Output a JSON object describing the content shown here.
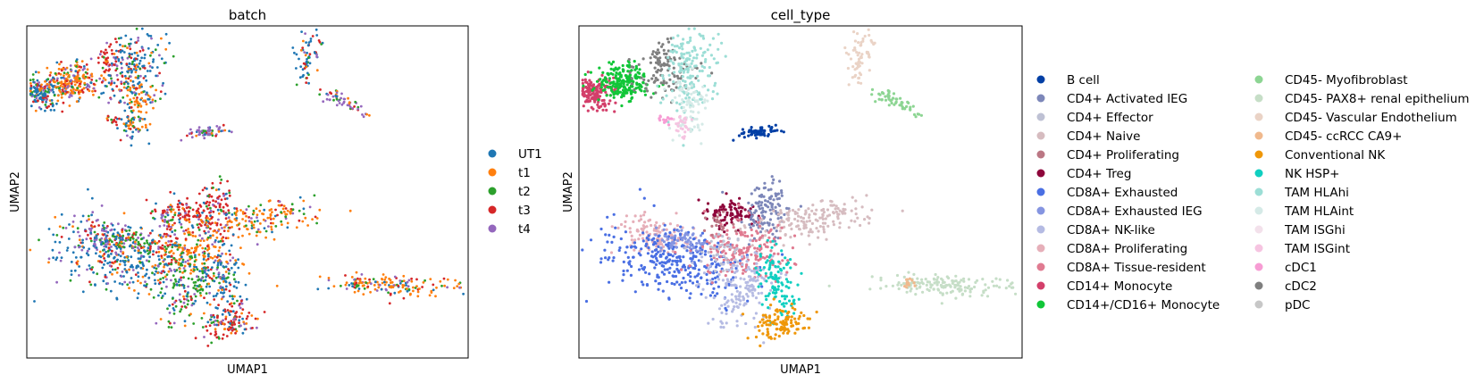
{
  "chart_data": [
    {
      "type": "scatter",
      "title": "batch",
      "xlabel": "UMAP1",
      "ylabel": "UMAP2",
      "ticks": false,
      "legend_position": "right",
      "series": [
        {
          "name": "UT1",
          "color": "#1f77b4"
        },
        {
          "name": "t1",
          "color": "#ff7f0e"
        },
        {
          "name": "t2",
          "color": "#2ca02c"
        },
        {
          "name": "t3",
          "color": "#d62728"
        },
        {
          "name": "t4",
          "color": "#9467bd"
        }
      ]
    },
    {
      "type": "scatter",
      "title": "cell_type",
      "xlabel": "UMAP1",
      "ylabel": "UMAP2",
      "ticks": false,
      "legend_position": "right",
      "series": [
        {
          "name": "B cell",
          "color": "#023fa5"
        },
        {
          "name": "CD4+ Activated IEG",
          "color": "#7d87b9"
        },
        {
          "name": "CD4+ Effector",
          "color": "#bec1d4"
        },
        {
          "name": "CD4+ Naive",
          "color": "#d6bcc0"
        },
        {
          "name": "CD4+ Proliferating",
          "color": "#bb7784"
        },
        {
          "name": "CD4+ Treg",
          "color": "#8e063b"
        },
        {
          "name": "CD8A+ Exhausted",
          "color": "#4a6fe3"
        },
        {
          "name": "CD8A+ Exhausted IEG",
          "color": "#8595e1"
        },
        {
          "name": "CD8A+ NK-like",
          "color": "#b5bbe3"
        },
        {
          "name": "CD8A+ Proliferating",
          "color": "#e6afb9"
        },
        {
          "name": "CD8A+ Tissue-resident",
          "color": "#e07b91"
        },
        {
          "name": "CD14+ Monocyte",
          "color": "#d33f6a"
        },
        {
          "name": "CD14+/CD16+ Monocyte",
          "color": "#11c638"
        },
        {
          "name": "CD45- Myofibroblast",
          "color": "#8dd593"
        },
        {
          "name": "CD45- PAX8+ renal epithelium",
          "color": "#c6dec7"
        },
        {
          "name": "CD45- Vascular Endothelium",
          "color": "#ead3c6"
        },
        {
          "name": "CD45- ccRCC CA9+",
          "color": "#f0b98d"
        },
        {
          "name": "Conventional NK",
          "color": "#ef9708"
        },
        {
          "name": "NK HSP+",
          "color": "#0fcfc0"
        },
        {
          "name": "TAM HLAhi",
          "color": "#9cded6"
        },
        {
          "name": "TAM HLAint",
          "color": "#d5eae7"
        },
        {
          "name": "TAM ISGhi",
          "color": "#f3e1eb"
        },
        {
          "name": "TAM ISGint",
          "color": "#f6c4e1"
        },
        {
          "name": "cDC1",
          "color": "#f79cd4"
        },
        {
          "name": "cDC2",
          "color": "#7f7f7f"
        },
        {
          "name": "pDC",
          "color": "#c7c7c7"
        }
      ]
    }
  ]
}
